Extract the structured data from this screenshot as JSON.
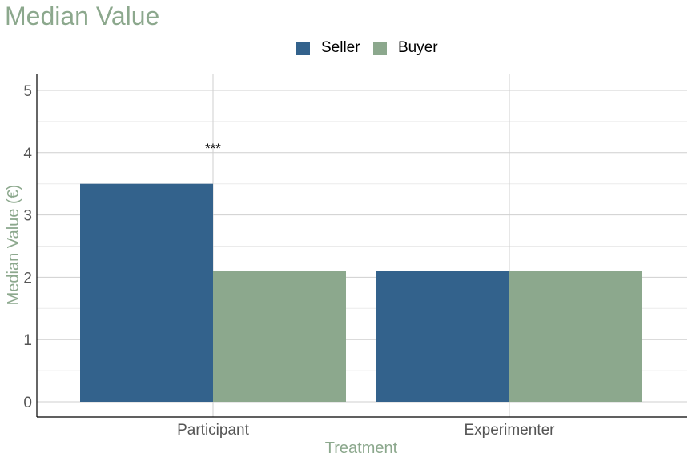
{
  "chart_data": {
    "type": "bar",
    "title": "Median Value",
    "xlabel": "Treatment",
    "ylabel": "Median Value (€)",
    "categories": [
      "Participant",
      "Experimenter"
    ],
    "series": [
      {
        "name": "Seller",
        "values": [
          3.5,
          2.1
        ],
        "color": "#33628c"
      },
      {
        "name": "Buyer",
        "values": [
          2.1,
          2.1
        ],
        "color": "#8ca88d"
      }
    ],
    "ylim": [
      0,
      5.25
    ],
    "yticks": [
      0,
      1,
      2,
      3,
      4,
      5
    ],
    "annotations": [
      {
        "category": "Participant",
        "text": "***",
        "y": 4.1
      }
    ],
    "legend_position": "top",
    "grid": true
  },
  "colors": {
    "title": "#8ca88d",
    "axis_label": "#8ca88d",
    "tick_label": "#555555",
    "grid_major": "#cfcfcf",
    "grid_minor": "#ebebeb",
    "axis_line": "#000000"
  }
}
